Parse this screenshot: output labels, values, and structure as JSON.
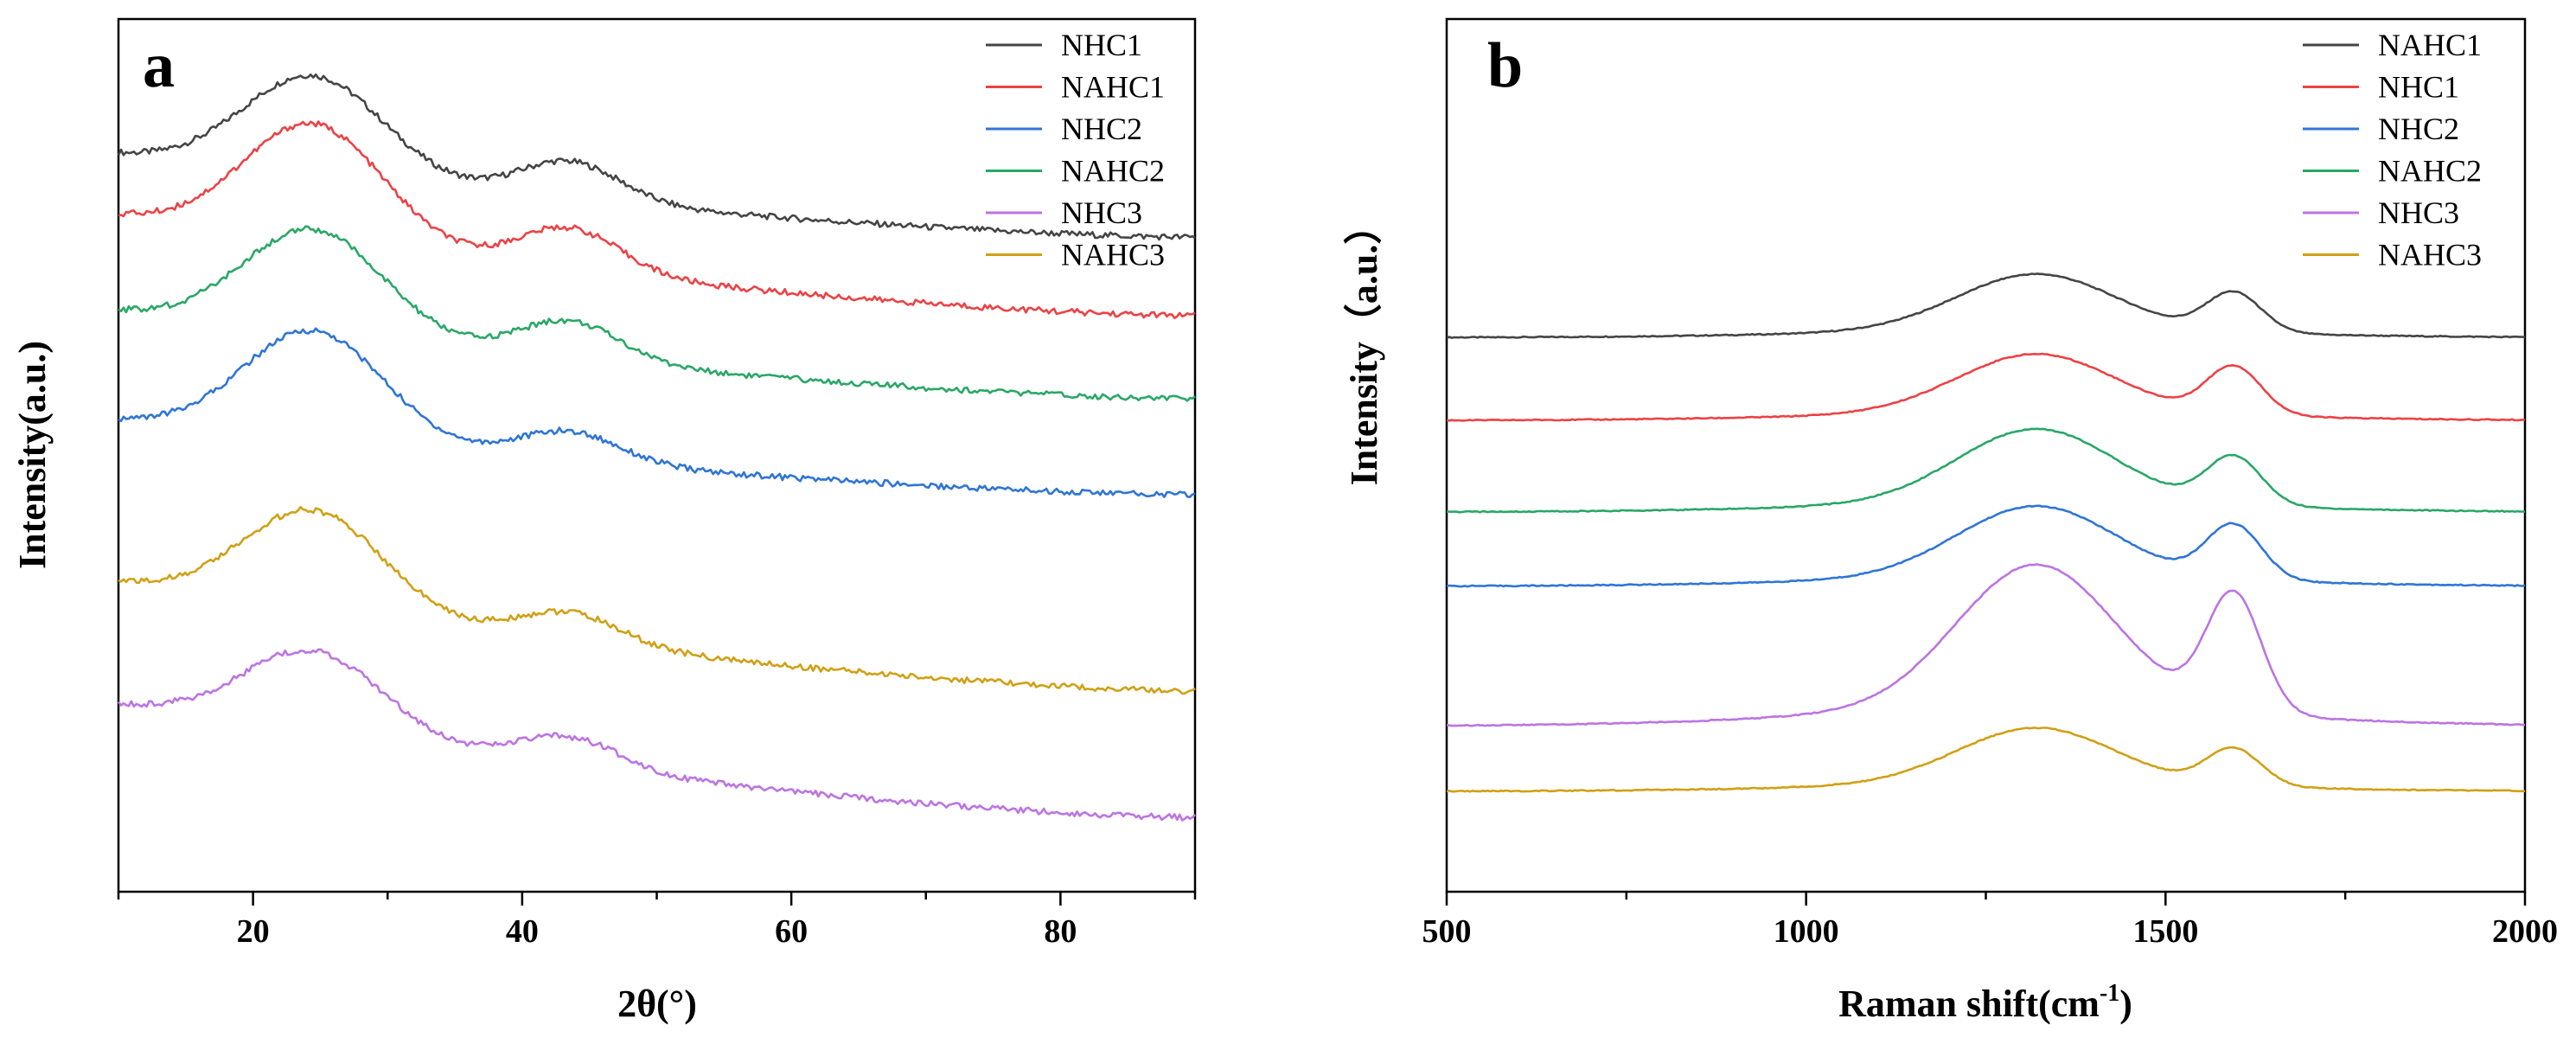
{
  "chart_data": [
    {
      "panel": "a",
      "type": "line",
      "title": "",
      "xlabel": "2θ(°)",
      "ylabel": "Intensity(a.u.)",
      "xlim": [
        10,
        90
      ],
      "ylim": [
        0,
        10
      ],
      "xticks": [
        20,
        40,
        60,
        80
      ],
      "y_ticks_labeled": false,
      "legend": "top-right",
      "series": [
        {
          "name": "NHC1",
          "color": "#454545",
          "offset": 7.5,
          "amp1": 1.15,
          "amp2": 0.45,
          "tail": 0.95
        },
        {
          "name": "NAHC1",
          "color": "#ec4245",
          "offset": 6.6,
          "amp1": 1.35,
          "amp2": 0.5,
          "tail": 1.15
        },
        {
          "name": "NHC2",
          "color": "#2f75d6",
          "offset": 4.55,
          "amp1": 1.25,
          "amp2": 0.35,
          "tail": 0.85
        },
        {
          "name": "NAHC2",
          "color": "#2aa767",
          "offset": 5.65,
          "amp1": 1.2,
          "amp2": 0.45,
          "tail": 1.0
        },
        {
          "name": "NHC3",
          "color": "#bc74e3",
          "offset": 0.85,
          "amp1": 0.95,
          "amp2": 0.35,
          "tail": 1.3
        },
        {
          "name": "NAHC3",
          "color": "#d0a015",
          "offset": 2.3,
          "amp1": 1.15,
          "amp2": 0.35,
          "tail": 1.25
        }
      ]
    },
    {
      "panel": "b",
      "type": "line",
      "title": "",
      "xlabel": "Raman shift(cm",
      "xlabel_sup": "-1",
      "xlabel_end": ")",
      "ylabel": "Intensity（a.u.）",
      "xlim": [
        500,
        2000
      ],
      "ylim": [
        0,
        10
      ],
      "xticks": [
        500,
        1000,
        1500,
        2000
      ],
      "y_ticks_labeled": false,
      "legend": "top-right",
      "series": [
        {
          "name": "NAHC1",
          "color": "#454545",
          "offset": 6.35,
          "amp1": 0.65,
          "amp2": 0.45
        },
        {
          "name": "NHC1",
          "color": "#ec4245",
          "offset": 5.4,
          "amp1": 0.68,
          "amp2": 0.55
        },
        {
          "name": "NHC2",
          "color": "#2f75d6",
          "offset": 3.5,
          "amp1": 0.82,
          "amp2": 0.62
        },
        {
          "name": "NAHC2",
          "color": "#2aa767",
          "offset": 4.35,
          "amp1": 0.85,
          "amp2": 0.55
        },
        {
          "name": "NHC3",
          "color": "#bc74e3",
          "offset": 1.9,
          "amp1": 1.65,
          "amp2": 1.35
        },
        {
          "name": "NAHC3",
          "color": "#d0a015",
          "offset": 1.15,
          "amp1": 0.65,
          "amp2": 0.42
        }
      ]
    }
  ]
}
